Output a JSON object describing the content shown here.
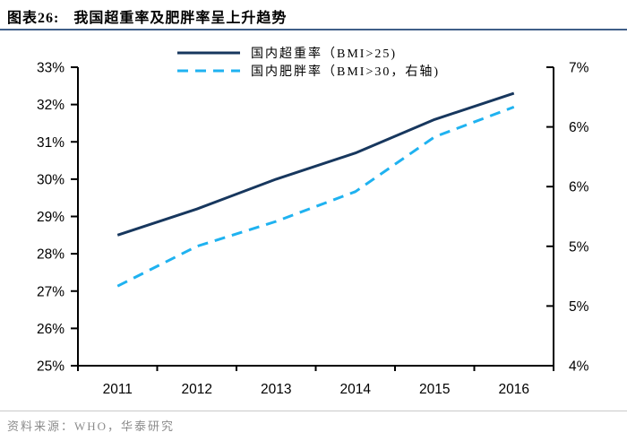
{
  "header": {
    "fig_label": "图表26:",
    "title": "我国超重率及肥胖率呈上升趋势"
  },
  "legend": {
    "items": [
      {
        "label": "国内超重率（BMI>25)",
        "line_style": "solid",
        "color": "#17375E"
      },
      {
        "label": "国内肥胖率（BMI>30，右轴)",
        "line_style": "dashed",
        "color": "#1FB2F0"
      }
    ]
  },
  "chart_data": {
    "type": "line",
    "title": "我国超重率及肥胖率呈上升趋势",
    "categories": [
      "2011",
      "2012",
      "2013",
      "2014",
      "2015",
      "2016"
    ],
    "series": [
      {
        "name": "国内超重率（BMI>25)",
        "axis": "left",
        "line_style": "solid",
        "color": "#17375E",
        "values": [
          28.5,
          29.2,
          30.0,
          30.7,
          31.6,
          32.3
        ]
      },
      {
        "name": "国内肥胖率（BMI>30，右轴)",
        "axis": "right",
        "line_style": "dashed",
        "color": "#1FB2F0",
        "values": [
          4.8,
          5.2,
          5.45,
          5.75,
          6.3,
          6.6
        ]
      }
    ],
    "left_axis": {
      "min": 25,
      "max": 33,
      "ticks": [
        {
          "v": 33,
          "label": "33%"
        },
        {
          "v": 32,
          "label": "32%"
        },
        {
          "v": 31,
          "label": "31%"
        },
        {
          "v": 30,
          "label": "30%"
        },
        {
          "v": 29,
          "label": "29%"
        },
        {
          "v": 28,
          "label": "28%"
        },
        {
          "v": 27,
          "label": "27%"
        },
        {
          "v": 26,
          "label": "26%"
        },
        {
          "v": 25,
          "label": "25%"
        }
      ]
    },
    "right_axis": {
      "min": 4,
      "max": 7,
      "ticks": [
        {
          "v": 7,
          "label": "7%"
        },
        {
          "v": 6.4,
          "label": "6%"
        },
        {
          "v": 5.8,
          "label": "6%"
        },
        {
          "v": 5.2,
          "label": "5%"
        },
        {
          "v": 4.6,
          "label": "5%"
        },
        {
          "v": 4,
          "label": "4%"
        }
      ]
    },
    "grid": false,
    "legend_position": "top"
  },
  "footer": {
    "source": "资料来源：WHO，华泰研究"
  },
  "colors": {
    "navy": "#17375E",
    "sky": "#1FB2F0",
    "axis": "#000000",
    "title_rule": "#3F5E88",
    "source_rule": "#C9C9C9",
    "source_text": "#8C8C8C"
  }
}
